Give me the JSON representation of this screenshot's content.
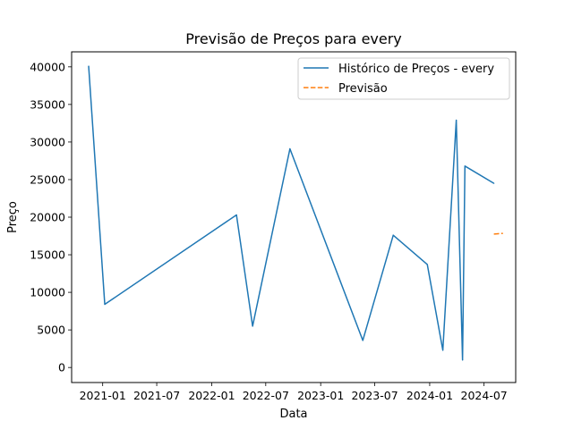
{
  "chart_data": {
    "type": "line",
    "title": "Previsão de Preços para every",
    "xlabel": "Data",
    "ylabel": "Preço",
    "x_ticks": [
      "2021-01",
      "2021-07",
      "2022-01",
      "2022-07",
      "2023-01",
      "2023-07",
      "2024-01",
      "2024-07"
    ],
    "y_ticks": [
      0,
      5000,
      10000,
      15000,
      20000,
      25000,
      30000,
      35000,
      40000
    ],
    "xlim": [
      "2020-09-19",
      "2024-10-15"
    ],
    "ylim": [
      -2000,
      42000
    ],
    "grid": false,
    "legend_position": "top-right",
    "series": [
      {
        "name": "Histórico de Preços - every",
        "color": "#1f77b4",
        "style": "solid",
        "points": [
          {
            "x": "2020-11-15",
            "y": 40100
          },
          {
            "x": "2021-01-08",
            "y": 8400
          },
          {
            "x": "2022-03-25",
            "y": 20300
          },
          {
            "x": "2022-05-18",
            "y": 5500
          },
          {
            "x": "2022-09-20",
            "y": 29100
          },
          {
            "x": "2023-05-22",
            "y": 3600
          },
          {
            "x": "2023-09-01",
            "y": 17600
          },
          {
            "x": "2023-12-24",
            "y": 13700
          },
          {
            "x": "2024-02-14",
            "y": 2300
          },
          {
            "x": "2024-03-30",
            "y": 32900
          },
          {
            "x": "2024-04-20",
            "y": 1000
          },
          {
            "x": "2024-04-28",
            "y": 26800
          },
          {
            "x": "2024-08-03",
            "y": 24500
          }
        ]
      },
      {
        "name": "Previsão",
        "color": "#ff7f0e",
        "style": "dashed",
        "points": [
          {
            "x": "2024-08-04",
            "y": 17750
          },
          {
            "x": "2024-08-18",
            "y": 17800
          },
          {
            "x": "2024-09-01",
            "y": 17850
          }
        ]
      }
    ]
  }
}
